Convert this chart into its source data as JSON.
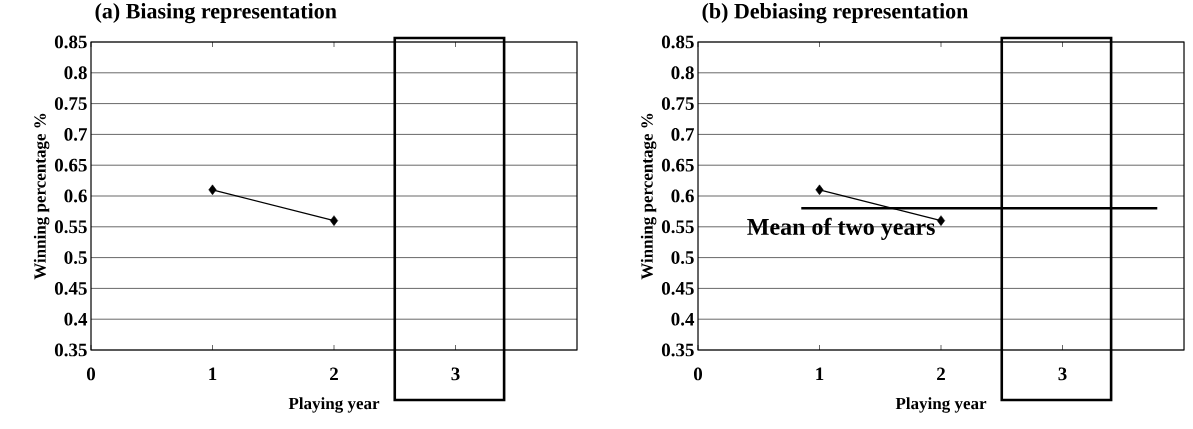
{
  "chart_data": [
    {
      "type": "line",
      "title": "(a) Biasing representation",
      "xlabel": "Playing year",
      "ylabel": "Winning percentage %",
      "series": [
        {
          "x": [
            1,
            2
          ],
          "values": [
            0.61,
            0.56
          ],
          "color": "#000000",
          "marker": "diamond"
        }
      ],
      "xlim": [
        0,
        4
      ],
      "xticks": [
        0,
        1,
        2,
        3
      ],
      "ylim": [
        0.35,
        0.85
      ],
      "yticks": [
        0.35,
        0.4,
        0.45,
        0.5,
        0.55,
        0.6,
        0.65,
        0.7,
        0.75,
        0.8,
        0.85
      ],
      "grid": "y",
      "line_style": "solid"
    },
    {
      "type": "line",
      "title": "(b) Debiasing representation",
      "xlabel": "Playing year",
      "ylabel": "Winning percentage %",
      "series": [
        {
          "x": [
            1,
            2
          ],
          "values": [
            0.61,
            0.56
          ],
          "color": "#000000",
          "marker": "diamond"
        },
        {
          "name": "Mean of two years",
          "type": "line",
          "x": [
            0.85,
            3.78
          ],
          "values": [
            0.58,
            0.58
          ],
          "color": "#000000",
          "marker": "none"
        }
      ],
      "xlim": [
        0,
        4
      ],
      "xticks": [
        0,
        1,
        2,
        3
      ],
      "ylim": [
        0.35,
        0.85
      ],
      "yticks": [
        0.35,
        0.4,
        0.45,
        0.5,
        0.55,
        0.6,
        0.65,
        0.7,
        0.75,
        0.8,
        0.85
      ],
      "grid": "y",
      "line_style": "solid"
    }
  ]
}
